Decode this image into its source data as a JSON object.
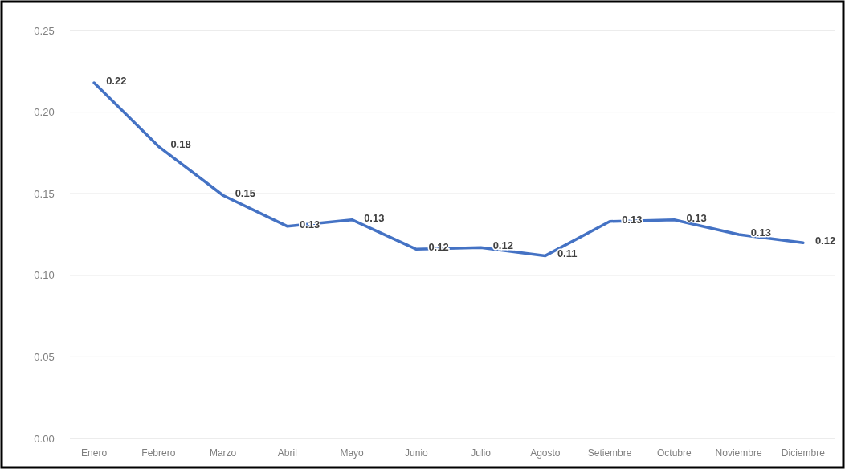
{
  "chart_data": {
    "type": "line",
    "categories": [
      "Enero",
      "Febrero",
      "Marzo",
      "Abril",
      "Mayo",
      "Junio",
      "Julio",
      "Agosto",
      "Setiembre",
      "Octubre",
      "Noviembre",
      "Diciembre"
    ],
    "series": [
      {
        "color": "#4472c4",
        "values": [
          0.218,
          0.179,
          0.149,
          0.13,
          0.134,
          0.116,
          0.117,
          0.112,
          0.133,
          0.134,
          0.125,
          0.12
        ],
        "value_labels": [
          "0.22",
          "0.18",
          "0.15",
          "0.13",
          "0.13",
          "0.12",
          "0.12",
          "0.11",
          "0.13",
          "0.13",
          "0.13",
          "0.12"
        ]
      }
    ],
    "ylim": [
      0,
      0.25
    ],
    "yticks": [
      {
        "value": 0,
        "label": "0.00"
      },
      {
        "value": 0.05,
        "label": "0.05"
      },
      {
        "value": 0.1,
        "label": "0.10"
      },
      {
        "value": 0.15,
        "label": "0.15"
      },
      {
        "value": 0.2,
        "label": "0.20"
      },
      {
        "value": 0.25,
        "label": "0.25"
      }
    ],
    "grid": "y",
    "marker": "none",
    "line_style": "solid"
  }
}
